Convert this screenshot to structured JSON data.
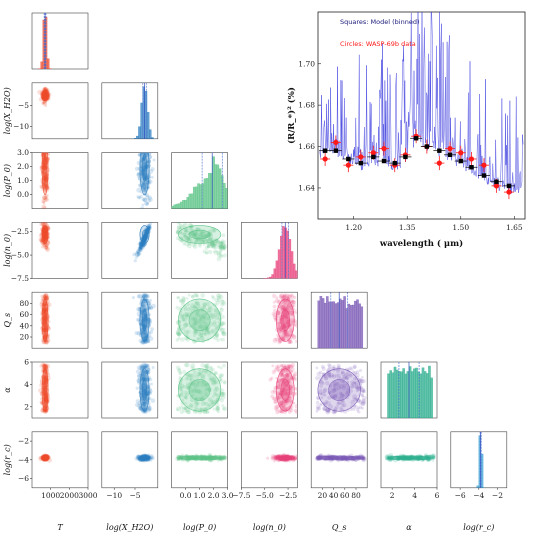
{
  "chart_data": [
    {
      "type": "corner",
      "parameters": [
        {
          "key": "T",
          "label": "T",
          "range": [
            0,
            3000
          ],
          "ticks": [
            "1000",
            "2000",
            "3000"
          ],
          "tick_values": [
            1000,
            2000,
            3000
          ],
          "color": "#ee4b2b",
          "hist_center": 700,
          "hist_width": 80
        },
        {
          "key": "logX",
          "label": "log(X_H2O)",
          "range": [
            -13,
            0.5
          ],
          "ticks": [
            "−10",
            "−5"
          ],
          "tick_values": [
            -10,
            -5
          ],
          "color": "#2f7fc1",
          "hist_center": -2.7,
          "hist_width": 0.7
        },
        {
          "key": "logP",
          "label": "log(P_0)",
          "range": [
            -1,
            3
          ],
          "ticks": [
            "0.0",
            "1.0",
            "2.0",
            "3.0"
          ],
          "tick_values": [
            0,
            1,
            2,
            3
          ],
          "color": "#5cc487",
          "hist_center": 1.9,
          "hist_width": 1.2
        },
        {
          "key": "logn",
          "label": "log(n_0)",
          "range": [
            -7.5,
            -1.5
          ],
          "ticks": [
            "−7.5",
            "−5.0",
            "−2.5"
          ],
          "tick_values": [
            -7.5,
            -5.0,
            -2.5
          ],
          "color": "#e8437c",
          "hist_center": -2.8,
          "hist_width": 0.6
        },
        {
          "key": "Qs",
          "label": "Q_s",
          "range": [
            0,
            100
          ],
          "ticks": [
            "20",
            "40",
            "60",
            "80"
          ],
          "tick_values": [
            20,
            40,
            60,
            80
          ],
          "color": "#7b5ab6",
          "hist_center": 50,
          "hist_width": 25
        },
        {
          "key": "alpha",
          "label": "α",
          "range": [
            1,
            6
          ],
          "ticks": [
            "2",
            "4",
            "6"
          ],
          "tick_values": [
            2,
            4,
            6
          ],
          "color": "#2faf8f",
          "hist_center": 4,
          "hist_width": 1.5
        },
        {
          "key": "logr",
          "label": "log(r_c)",
          "range": [
            -7,
            -1
          ],
          "ticks": [
            "−6",
            "−4",
            "−2"
          ],
          "tick_values": [
            -6,
            -4,
            -2
          ],
          "color": "#3aa3d6",
          "hist_center": -3.8,
          "hist_width": 0.1
        }
      ]
    },
    {
      "type": "line",
      "xlabel": "wavelength  ( μm)",
      "ylabel": "(R/R_*)² (%)",
      "xlim": [
        1.1,
        1.68
      ],
      "ylim": [
        1.625,
        1.725
      ],
      "xticks": [
        1.2,
        1.35,
        1.5,
        1.65
      ],
      "xtick_labels": [
        "1.20",
        "1.35",
        "1.50",
        "1.65"
      ],
      "yticks": [
        1.64,
        1.66,
        1.68,
        1.7
      ],
      "ytick_labels": [
        "1.64",
        "1.66",
        "1.68",
        "1.70"
      ],
      "series": [
        {
          "name": "Squares: Model (binned)",
          "color": "#1a1a7a",
          "x": [
            1.12,
            1.15,
            1.185,
            1.22,
            1.255,
            1.285,
            1.315,
            1.345,
            1.375,
            1.405,
            1.44,
            1.47,
            1.5,
            1.53,
            1.565,
            1.6,
            1.635
          ],
          "y": [
            1.658,
            1.658,
            1.654,
            1.652,
            1.655,
            1.653,
            1.652,
            1.655,
            1.664,
            1.66,
            1.658,
            1.656,
            1.653,
            1.65,
            1.646,
            1.643,
            1.641
          ]
        },
        {
          "name": "Circles: WASP-69b data",
          "color": "#ff1a1a",
          "x": [
            1.12,
            1.15,
            1.185,
            1.22,
            1.255,
            1.285,
            1.315,
            1.345,
            1.375,
            1.405,
            1.44,
            1.47,
            1.5,
            1.53,
            1.565,
            1.6,
            1.635
          ],
          "y": [
            1.654,
            1.662,
            1.651,
            1.655,
            1.657,
            1.659,
            1.651,
            1.656,
            1.665,
            1.66,
            1.652,
            1.659,
            1.657,
            1.654,
            1.651,
            1.641,
            1.638
          ]
        }
      ],
      "model_curve": {
        "name": "Model",
        "color": "#3333dd"
      }
    }
  ]
}
